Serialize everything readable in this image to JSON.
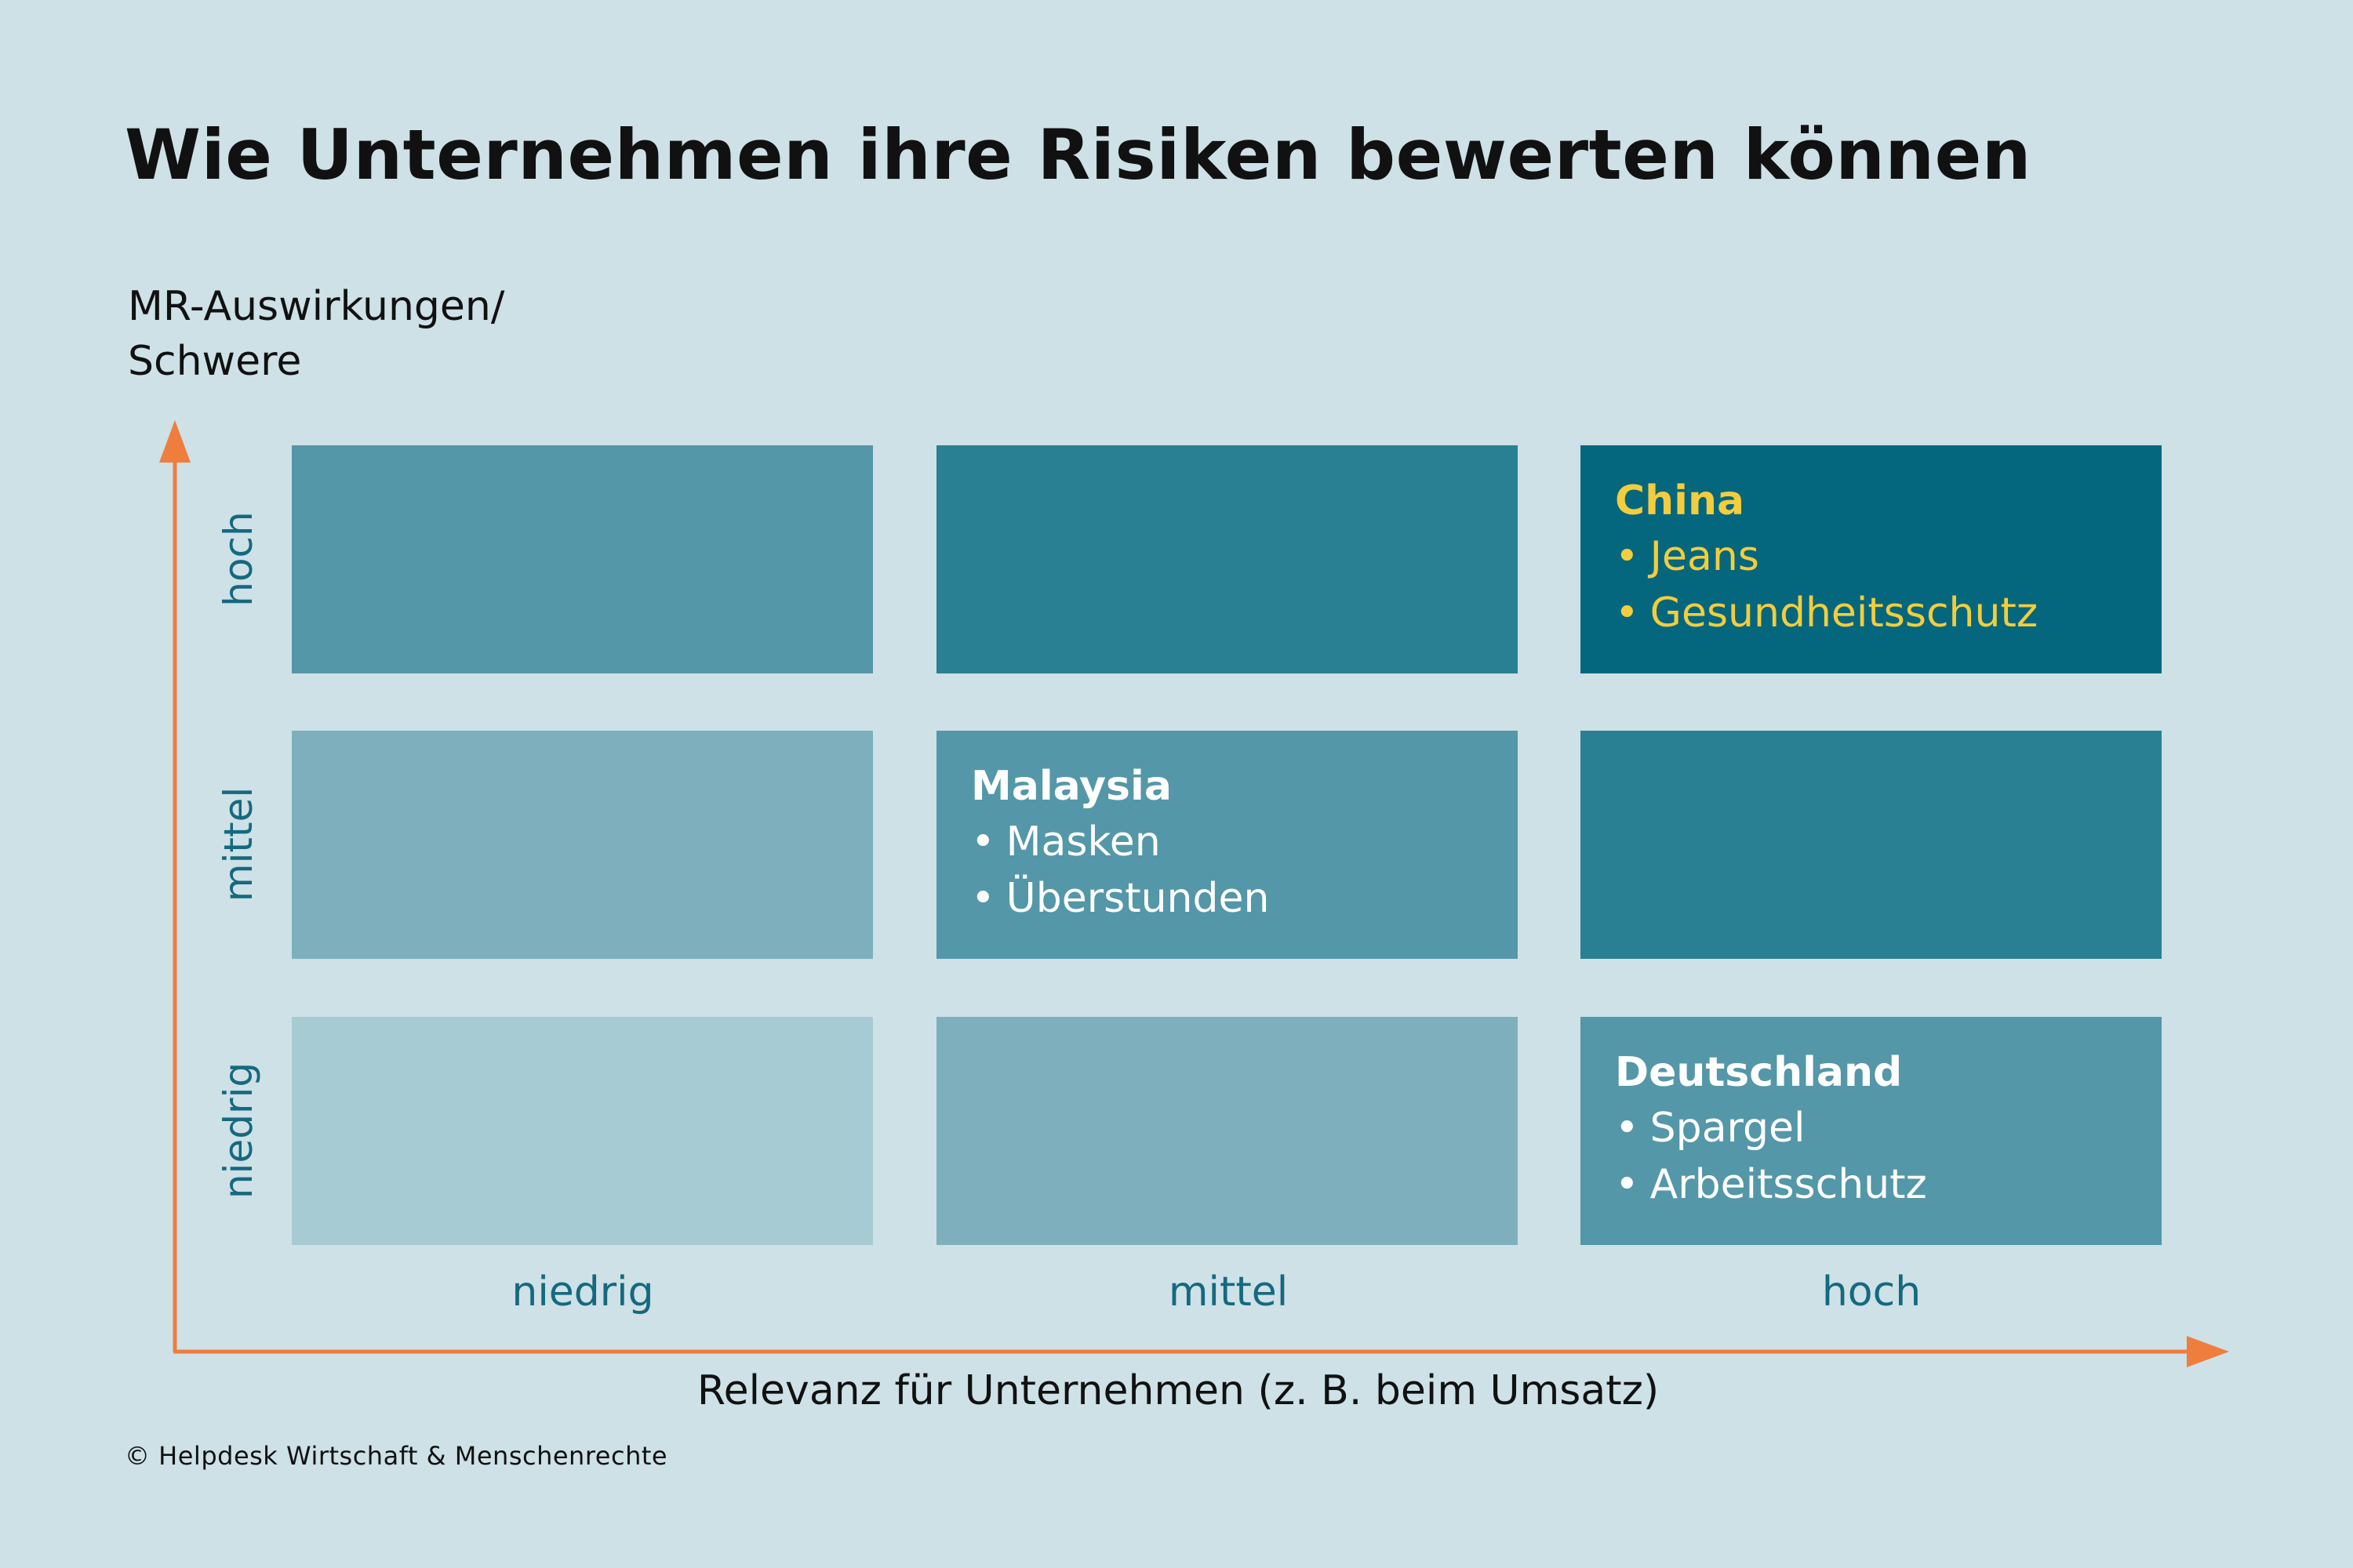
{
  "title": "Wie Unternehmen ihre Risiken bewerten können",
  "y_axis": {
    "label_line1": "MR-Auswirkungen/",
    "label_line2": "Schwere",
    "levels": [
      "hoch",
      "mittel",
      "niedrig"
    ]
  },
  "x_axis": {
    "label": "Relevanz für Unternehmen (z. B. beim Umsatz)",
    "levels": [
      "niedrig",
      "mittel",
      "hoch"
    ]
  },
  "colors": {
    "background": "#cde1e6",
    "axis_arrow": "#ee7d3e",
    "axis_level_text": "#15697f",
    "highlight_text": "#f3cd3d",
    "cell_shades": [
      "#a7cbd3",
      "#7db0bc",
      "#5497a8",
      "#2a8093",
      "#04677d"
    ]
  },
  "matrix": {
    "rows": [
      {
        "level": "hoch",
        "cells": [
          {
            "shade": "#5497a8"
          },
          {
            "shade": "#2a8093"
          },
          {
            "shade": "#04677d",
            "title": "China",
            "items": [
              "Jeans",
              "Gesundheitsschutz"
            ],
            "text_color": "#f3cd3d"
          }
        ]
      },
      {
        "level": "mittel",
        "cells": [
          {
            "shade": "#7db0bc"
          },
          {
            "shade": "#5497a8",
            "title": "Malaysia",
            "items": [
              "Masken",
              "Überstunden"
            ],
            "text_color": "#ffffff"
          },
          {
            "shade": "#2a8093"
          }
        ]
      },
      {
        "level": "niedrig",
        "cells": [
          {
            "shade": "#a7cbd3"
          },
          {
            "shade": "#7db0bc"
          },
          {
            "shade": "#5497a8",
            "title": "Deutschland",
            "items": [
              "Spargel",
              "Arbeitsschutz"
            ],
            "text_color": "#ffffff"
          }
        ]
      }
    ]
  },
  "credit": "© Helpdesk Wirtschaft & Menschenrechte"
}
